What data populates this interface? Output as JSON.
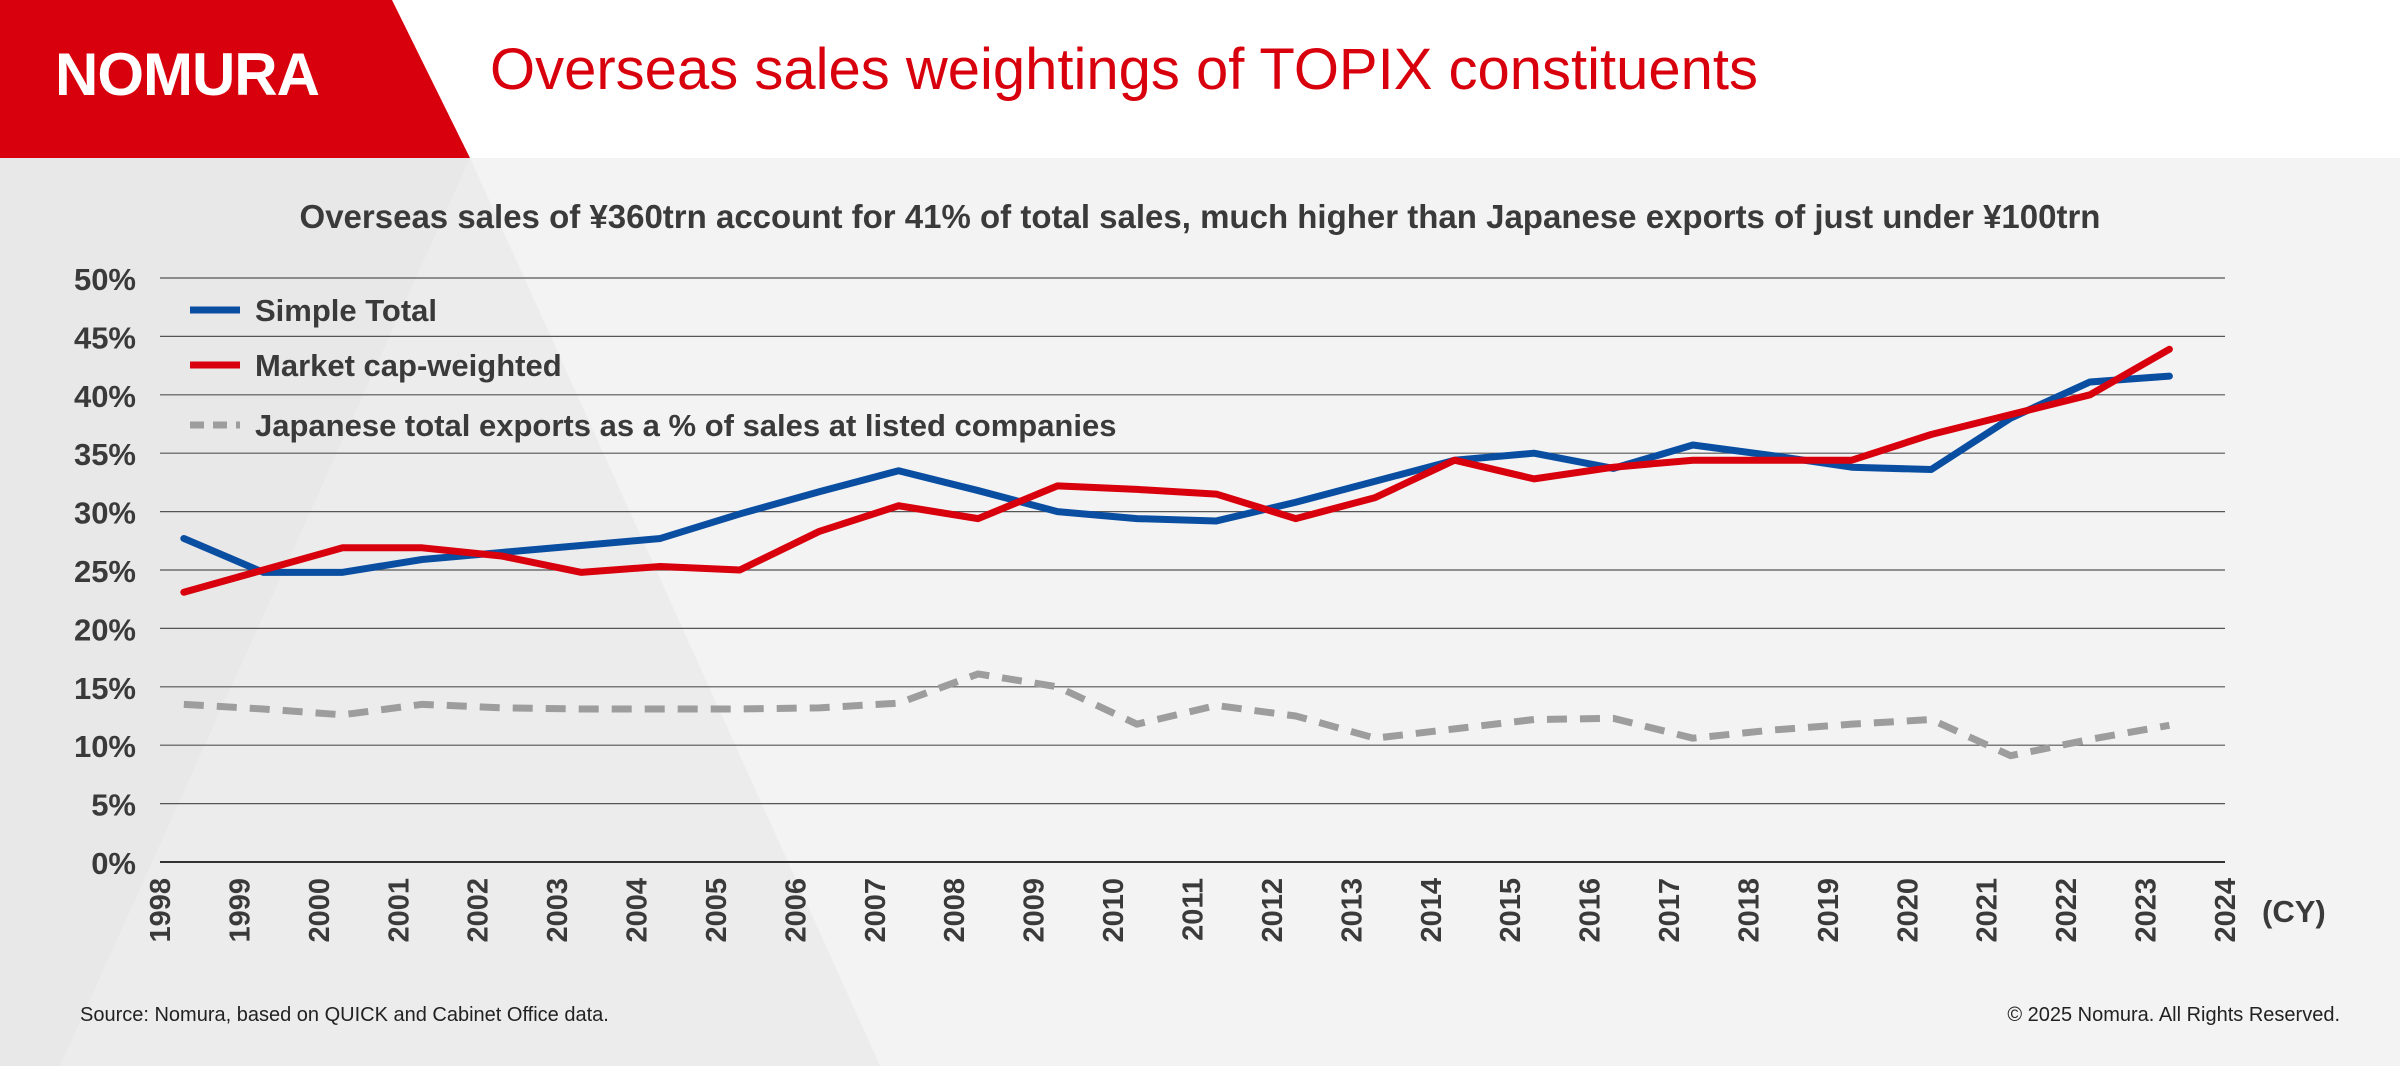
{
  "header": {
    "logo_text": "NOMURA",
    "title": "Overseas sales weightings of TOPIX constituents",
    "brand_color": "#d9000d"
  },
  "chart_data": {
    "type": "line",
    "title": "Overseas sales of ¥360trn account for 41% of total sales, much higher than Japanese exports of just under ¥100trn",
    "xlabel": "(CY)",
    "ylabel": "",
    "x_ticks": [
      "1998",
      "1999",
      "2000",
      "2001",
      "2002",
      "2003",
      "2004",
      "2005",
      "2006",
      "2007",
      "2008",
      "2009",
      "2010",
      "2011",
      "2012",
      "2013",
      "2014",
      "2015",
      "2016",
      "2017",
      "2018",
      "2019",
      "2020",
      "2021",
      "2022",
      "2023",
      "2024"
    ],
    "y_ticks": [
      "0%",
      "5%",
      "10%",
      "15%",
      "20%",
      "25%",
      "30%",
      "35%",
      "40%",
      "45%",
      "50%"
    ],
    "ylim": [
      0,
      50
    ],
    "grid": "horizontal",
    "legend_position": "top-left",
    "series": [
      {
        "name": "Simple Total",
        "color": "#0a4ea2",
        "style": "solid",
        "x": [
          1998.3,
          1999.3,
          2000.3,
          2001.3,
          2002.3,
          2003.3,
          2004.3,
          2005.3,
          2006.3,
          2007.3,
          2008.3,
          2009.3,
          2010.3,
          2011.3,
          2012.3,
          2013.3,
          2014.3,
          2015.3,
          2016.3,
          2017.3,
          2018.3,
          2019.3,
          2020.3,
          2021.3,
          2022.3,
          2023.3
        ],
        "values": [
          27.7,
          24.8,
          24.8,
          25.9,
          26.5,
          27.1,
          27.7,
          29.8,
          31.7,
          33.5,
          31.8,
          30.0,
          29.4,
          29.2,
          30.8,
          32.6,
          34.4,
          35.0,
          33.7,
          35.7,
          34.8,
          33.8,
          33.6,
          38.0,
          41.1,
          41.6
        ]
      },
      {
        "name": "Market cap-weighted",
        "color": "#d9000d",
        "style": "solid",
        "x": [
          1998.3,
          1999.3,
          2000.3,
          2001.3,
          2002.3,
          2003.3,
          2004.3,
          2005.3,
          2006.3,
          2007.3,
          2008.3,
          2009.3,
          2010.3,
          2011.3,
          2012.3,
          2013.3,
          2014.3,
          2015.3,
          2016.3,
          2017.3,
          2018.3,
          2019.3,
          2020.3,
          2021.3,
          2022.3,
          2023.3
        ],
        "values": [
          23.1,
          25.0,
          26.9,
          26.9,
          26.2,
          24.8,
          25.3,
          25.0,
          28.3,
          30.5,
          29.4,
          32.2,
          31.9,
          31.5,
          29.4,
          31.2,
          34.4,
          32.8,
          33.8,
          34.4,
          34.4,
          34.4,
          36.6,
          38.3,
          40.0,
          43.9
        ]
      },
      {
        "name": "Japanese total exports as a % of sales at listed companies",
        "color": "#9d9d9d",
        "style": "dashed",
        "x": [
          1998.3,
          1999.3,
          2000.3,
          2001.3,
          2002.3,
          2003.3,
          2004.3,
          2005.3,
          2006.3,
          2007.3,
          2008.3,
          2009.3,
          2010.3,
          2011.3,
          2012.3,
          2013.3,
          2014.3,
          2015.3,
          2016.3,
          2017.3,
          2018.3,
          2019.3,
          2020.3,
          2021.3,
          2022.3,
          2023.3
        ],
        "values": [
          13.5,
          13.1,
          12.6,
          13.5,
          13.2,
          13.1,
          13.1,
          13.1,
          13.2,
          13.6,
          16.1,
          15.0,
          11.8,
          13.4,
          12.5,
          10.6,
          11.4,
          12.2,
          12.3,
          10.6,
          11.3,
          11.8,
          12.2,
          9.1,
          10.5,
          11.7
        ]
      }
    ]
  },
  "footer": {
    "source": "Source: Nomura, based on QUICK and Cabinet Office data.",
    "copyright": "© 2025 Nomura. All Rights Reserved."
  }
}
